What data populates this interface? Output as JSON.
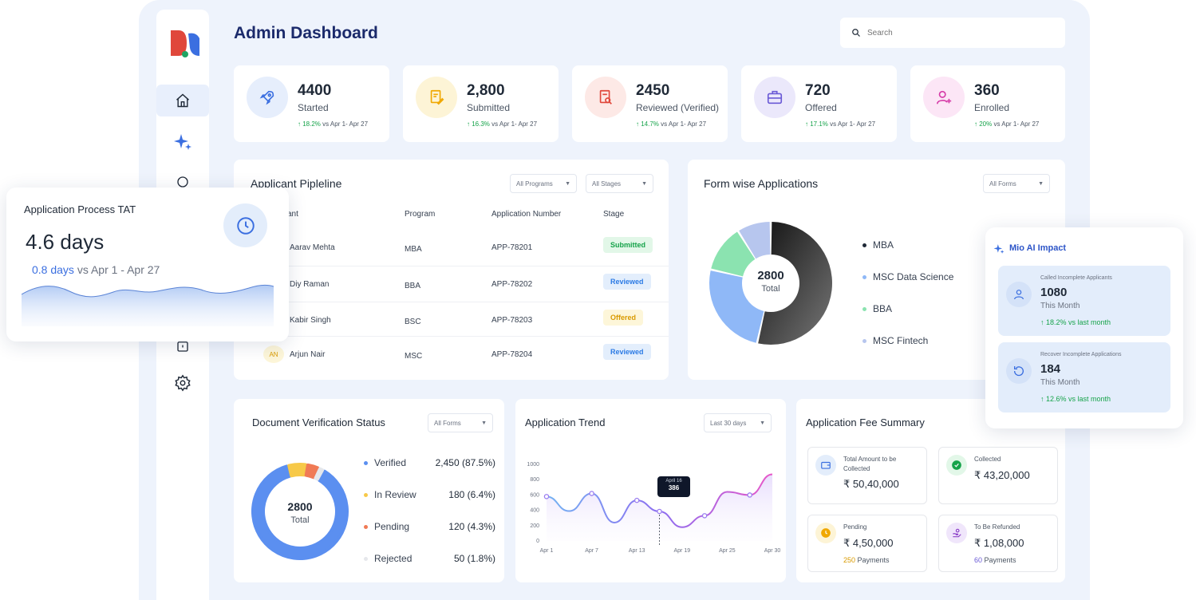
{
  "header": {
    "title": "Admin Dashboard",
    "search_placeholder": "Search"
  },
  "stats": [
    {
      "value": "4400",
      "label": "Started",
      "delta": "18.2%",
      "period": "vs Apr 1- Apr 27",
      "icon": "rocket-icon",
      "color": "#3b6fe0"
    },
    {
      "value": "2,800",
      "label": "Submitted",
      "delta": "16.3%",
      "period": "vs Apr 1- Apr 27",
      "icon": "document-edit-icon",
      "color": "#f0a800"
    },
    {
      "value": "2450",
      "label": "Reviewed (Verified)",
      "delta": "14.7%",
      "period": "vs Apr 1- Apr 27",
      "icon": "document-search-icon",
      "color": "#e0473b"
    },
    {
      "value": "720",
      "label": "Offered",
      "delta": "17.1%",
      "period": "vs Apr 1- Apr 27",
      "icon": "briefcase-icon",
      "color": "#6b5bd6"
    },
    {
      "value": "360",
      "label": "Enrolled",
      "delta": "20%",
      "period": "vs Apr 1- Apr 27",
      "icon": "user-add-icon",
      "color": "#d63ba8"
    }
  ],
  "pipeline": {
    "title": "Applicant Pipleline",
    "filter_programs": "All Programs",
    "filter_stages": "All Stages",
    "columns": [
      "ant",
      "Program",
      "Application Number",
      "Stage"
    ],
    "rows": [
      {
        "initials": "",
        "name": "Aarav Mehta",
        "program": "MBA",
        "app": "APP-78201",
        "stage": "Submitted"
      },
      {
        "initials": "",
        "name": "Diy Raman",
        "program": "BBA",
        "app": "APP-78202",
        "stage": "Reviewed"
      },
      {
        "initials": "",
        "name": "Kabir Singh",
        "program": "BSC",
        "app": "APP-78203",
        "stage": "Offered"
      },
      {
        "initials": "AN",
        "name": "Arjun Nair",
        "program": "MSC",
        "app": "APP-78204",
        "stage": "Reviewed"
      }
    ]
  },
  "form_wise": {
    "title": "Form wise Applications",
    "filter": "All Forms",
    "total_value": "2800",
    "total_label": "Total",
    "legend": [
      "MBA",
      "MSC Data Science",
      "BBA",
      "MSC Fintech"
    ]
  },
  "tat": {
    "title": "Application Process TAT",
    "value": "4.6 days",
    "delta": "0.8 days",
    "period": "vs Apr 1 - Apr 27"
  },
  "mio": {
    "title": "Mio AI Impact",
    "items": [
      {
        "label": "Called Incomplete Applicants",
        "value": "1080",
        "sub": "This Month",
        "delta": "18.2% vs last month"
      },
      {
        "label": "Recover Incomplete Applications",
        "value": "184",
        "sub": "This Month",
        "delta": "12.6% vs last month"
      }
    ]
  },
  "doc_verification": {
    "title": "Document Verification Status",
    "filter": "All Forms",
    "total_value": "2800",
    "total_label": "Total",
    "items": [
      {
        "label": "Verified",
        "value": "2,450 (87.5%)",
        "color": "#5b8ff0"
      },
      {
        "label": "In Review",
        "value": "180 (6.4%)",
        "color": "#f7c948"
      },
      {
        "label": "Pending",
        "value": "120 (4.3%)",
        "color": "#f07a55"
      },
      {
        "label": "Rejected",
        "value": "50 (1.8%)",
        "color": "#e5e7eb"
      }
    ]
  },
  "trend": {
    "title": "Application Trend",
    "filter": "Last 30 days",
    "tooltip_date": "April 16",
    "tooltip_value": "386"
  },
  "fee": {
    "title": "Application Fee Summary",
    "cards": [
      {
        "label": "Total Amount to be Collected",
        "value": "₹ 50,40,000",
        "sub": "",
        "sub_count": ""
      },
      {
        "label": "Collected",
        "value": "₹ 43,20,000",
        "sub": "",
        "sub_count": ""
      },
      {
        "label": "Pending",
        "value": "₹ 4,50,000",
        "sub": "Payments",
        "sub_count": "250"
      },
      {
        "label": "To Be Refunded",
        "value": "₹ 1,08,000",
        "sub": "Payments",
        "sub_count": "60"
      }
    ]
  },
  "chart_data": [
    {
      "type": "pie",
      "title": "Form wise Applications",
      "categories": [
        "MBA",
        "MSC Data Science",
        "BBA",
        "MSC Fintech"
      ],
      "values": [
        1500,
        700,
        350,
        250
      ],
      "colors": [
        "#2a2a2a",
        "#8fb8f7",
        "#8be3b0",
        "#b7c6ee"
      ]
    },
    {
      "type": "pie",
      "title": "Document Verification Status",
      "categories": [
        "Verified",
        "In Review",
        "Pending",
        "Rejected"
      ],
      "values": [
        2450,
        180,
        120,
        50
      ],
      "colors": [
        "#5b8ff0",
        "#f7c948",
        "#f07a55",
        "#e5e7eb"
      ]
    },
    {
      "type": "line",
      "title": "Application Trend",
      "x": [
        "Apr 1",
        "Apr 4",
        "Apr 7",
        "Apr 10",
        "Apr 13",
        "Apr 16",
        "Apr 19",
        "Apr 22",
        "Apr 25",
        "Apr 28",
        "Apr 30"
      ],
      "values": [
        580,
        390,
        620,
        240,
        530,
        386,
        180,
        330,
        640,
        600,
        870
      ],
      "xticks": [
        "Apr 1",
        "Apr 7",
        "Apr 13",
        "Apr 19",
        "Apr 25",
        "Apr 30"
      ],
      "yticks": [
        0,
        200,
        400,
        600,
        800,
        1000
      ],
      "ylim": [
        0,
        1000
      ]
    }
  ]
}
